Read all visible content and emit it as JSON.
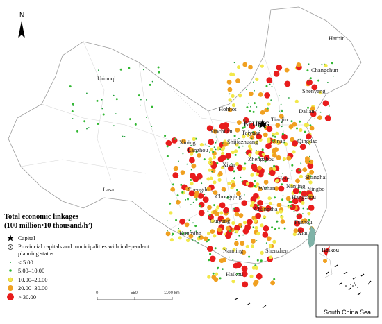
{
  "legend": {
    "title_line1": "Total economic linkages",
    "title_line2": "(100 million•10 thousand/h²)",
    "capital": "Capital",
    "provincial": "Provincial capitals and municipalities with independent planning status",
    "classes": [
      "< 5.00",
      "5.00–10.00",
      "10.00–20.00",
      "20.00–30.00",
      "> 30.00"
    ],
    "class_colors": [
      "#1f9e3a",
      "#33b833",
      "#f2e84a",
      "#f0a020",
      "#e81c1c"
    ]
  },
  "north_label": "N",
  "scale": {
    "ticks": [
      "0",
      "550",
      "1100 km"
    ]
  },
  "inset": {
    "title": "South China Sea",
    "label": "Haikou"
  },
  "cities": {
    "urumqi": "Urumqi",
    "harbin": "Harbin",
    "changchun": "Changchun",
    "shenyang": "Shenyang",
    "dalian": "Dalian",
    "hohhot": "Hohhot",
    "beijing": "BEIJING",
    "tianjin": "Tianjin",
    "yinchuan": "Yinchuan",
    "taiyuan": "Taiyuan",
    "jinan": "Jinan",
    "qingdao": "Qingdao",
    "shijiazhuang": "Shijiazhuang",
    "xining": "Xining",
    "lanzhou": "Lanzhou",
    "xian": "Xi'an",
    "zhengzhou": "Zhengzhou",
    "hefei": "Hefei",
    "nanjing": "Nanjing",
    "shanghai": "Shanghai",
    "ningbo": "Ningbo",
    "hangzhou": "Hangzhou",
    "wuhan": "Wuhan",
    "chengdu": "Chengdu",
    "chongqing": "Chongqing",
    "changsha": "Changsha",
    "lasa": "Lasa",
    "fuzhou": "Fuzhou",
    "xiamen": "Xiamen",
    "guiyang": "Guiyang",
    "kunming": "Kunming",
    "nanning": "Nanning",
    "shenzhen": "Shenzhen",
    "haikou": "Haikou"
  }
}
